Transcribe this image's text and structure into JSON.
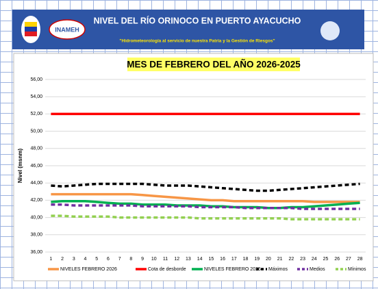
{
  "header": {
    "title": "NIVEL DEL RÍO ORINOCO EN PUERTO AYACUCHO",
    "subtitle": "\"Hidrometeorología al servicio de nuestra Patria y la Gestión de Riesgos\"",
    "logo": "INAMEH"
  },
  "chart_data": {
    "type": "line",
    "title": "MES DE FEBRERO DEL AÑO 2026-2025",
    "y_label": "Nivel (msnm)",
    "categories": [
      "1",
      "2",
      "3",
      "4",
      "5",
      "6",
      "7",
      "8",
      "9",
      "10",
      "11",
      "12",
      "13",
      "14",
      "15",
      "16",
      "17",
      "18",
      "19",
      "20",
      "21",
      "22",
      "23",
      "24",
      "25",
      "26",
      "27",
      "28"
    ],
    "ylim": [
      36,
      56
    ],
    "yticks": [
      {
        "value": 36,
        "label": "36,00"
      },
      {
        "value": 38,
        "label": "38,00"
      },
      {
        "value": 40,
        "label": "40,00"
      },
      {
        "value": 42,
        "label": "42,00"
      },
      {
        "value": 44,
        "label": "44,00"
      },
      {
        "value": 46,
        "label": "46,00"
      },
      {
        "value": 48,
        "label": "48,00"
      },
      {
        "value": 50,
        "label": "50,00"
      },
      {
        "value": 52,
        "label": "52,00"
      },
      {
        "value": 54,
        "label": "54,00"
      },
      {
        "value": 56,
        "label": "56,00"
      }
    ],
    "legend": "bottom",
    "series": [
      {
        "name": "NIVELES FEBRERO 2026",
        "color": "#f79646",
        "dash": false,
        "values": [
          42.7,
          42.7,
          42.7,
          42.7,
          42.7,
          42.7,
          42.7,
          42.7,
          42.6,
          42.5,
          42.4,
          42.3,
          42.2,
          42.1,
          42.0,
          42.0,
          41.9,
          41.9,
          41.9,
          41.9,
          41.9,
          41.9,
          41.9,
          41.8,
          41.8,
          41.8,
          41.8,
          41.8
        ]
      },
      {
        "name": "Cota de desborde",
        "color": "#ff0000",
        "dash": false,
        "values": [
          52,
          52,
          52,
          52,
          52,
          52,
          52,
          52,
          52,
          52,
          52,
          52,
          52,
          52,
          52,
          52,
          52,
          52,
          52,
          52,
          52,
          52,
          52,
          52,
          52,
          52,
          52,
          52
        ]
      },
      {
        "name": "NIVELES FEBRERO 2025",
        "color": "#00b050",
        "dash": false,
        "values": [
          41.8,
          41.9,
          41.9,
          41.9,
          41.8,
          41.7,
          41.6,
          41.6,
          41.5,
          41.5,
          41.5,
          41.4,
          41.4,
          41.4,
          41.3,
          41.3,
          41.2,
          41.2,
          41.2,
          41.1,
          41.1,
          41.2,
          41.2,
          41.3,
          41.4,
          41.5,
          41.6,
          41.7
        ]
      },
      {
        "name": "Máximos",
        "color": "#000000",
        "dash": true,
        "values": [
          43.7,
          43.6,
          43.7,
          43.8,
          43.9,
          43.9,
          43.9,
          43.9,
          43.9,
          43.8,
          43.7,
          43.7,
          43.7,
          43.6,
          43.5,
          43.4,
          43.3,
          43.2,
          43.1,
          43.1,
          43.2,
          43.3,
          43.4,
          43.5,
          43.6,
          43.7,
          43.8,
          43.9
        ]
      },
      {
        "name": "Medios",
        "color": "#7030a0",
        "dash": true,
        "values": [
          41.5,
          41.5,
          41.4,
          41.4,
          41.4,
          41.4,
          41.4,
          41.4,
          41.3,
          41.3,
          41.3,
          41.3,
          41.3,
          41.2,
          41.2,
          41.2,
          41.2,
          41.1,
          41.1,
          41.1,
          41.1,
          41.1,
          41.0,
          41.0,
          41.0,
          41.0,
          41.0,
          41.0
        ]
      },
      {
        "name": "Mínimos",
        "color": "#92d050",
        "dash": true,
        "values": [
          40.2,
          40.2,
          40.1,
          40.1,
          40.1,
          40.1,
          40.0,
          40.0,
          40.0,
          40.0,
          40.0,
          40.0,
          40.0,
          39.9,
          39.9,
          39.9,
          39.9,
          39.9,
          39.9,
          39.9,
          39.9,
          39.8,
          39.8,
          39.8,
          39.8,
          39.8,
          39.8,
          39.8
        ]
      }
    ]
  }
}
